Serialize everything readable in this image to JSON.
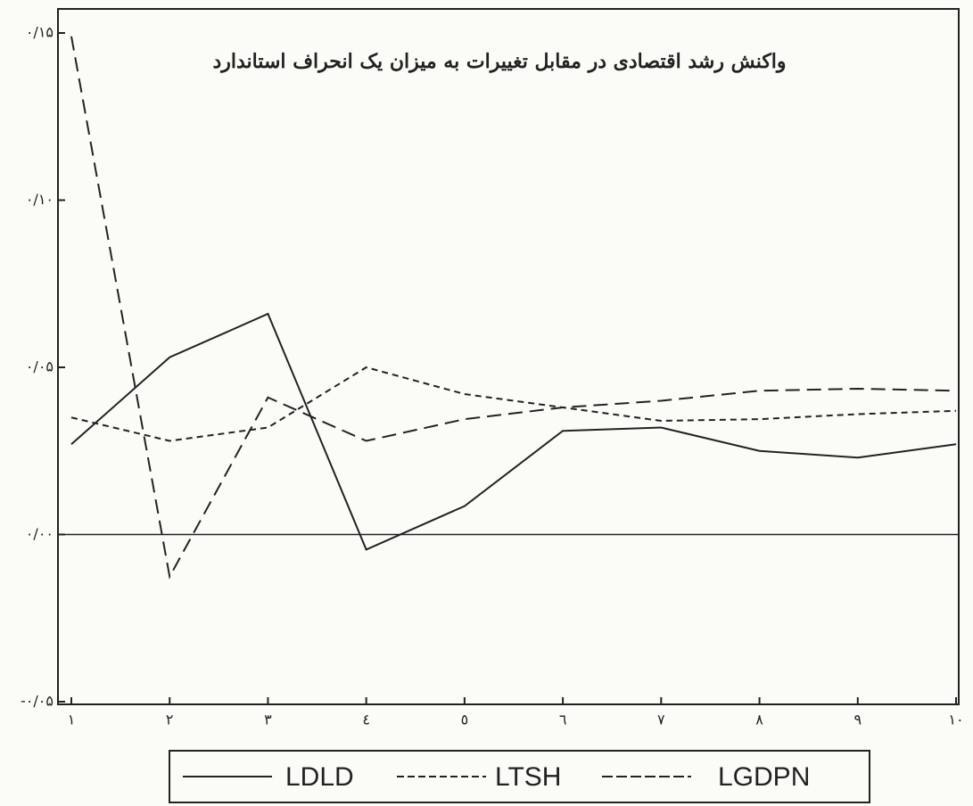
{
  "chart_data": {
    "type": "line",
    "title": "واکنش رشد اقتصادی در مقابل تغییرات به میزان یک انحراف استاندارد",
    "categories": [
      "۱",
      "۲",
      "۳",
      "٤",
      "٥",
      "٦",
      "۷",
      "۸",
      "۹",
      "۱۰"
    ],
    "series": [
      {
        "name": "LDLD",
        "color": "#222222",
        "dash": "none",
        "values": [
          0.027,
          0.053,
          0.066,
          -0.0045,
          0.0085,
          0.031,
          0.032,
          0.025,
          0.023,
          0.027
        ]
      },
      {
        "name": "LTSH",
        "color": "#222222",
        "dash": "7 5",
        "values": [
          0.035,
          0.028,
          0.032,
          0.05,
          0.042,
          0.038,
          0.034,
          0.0345,
          0.036,
          0.037
        ]
      },
      {
        "name": "LGDPN",
        "color": "#222222",
        "dash": "16 8",
        "values": [
          0.149,
          -0.0126,
          0.041,
          0.028,
          0.0345,
          0.038,
          0.04,
          0.043,
          0.0436,
          0.043
        ]
      }
    ],
    "ylim": [
      -0.05,
      0.15
    ],
    "yticks": [
      {
        "value": -0.05,
        "label": "-۰/۰۵"
      },
      {
        "value": 0,
        "label": "۰/۰۰"
      },
      {
        "value": 0.05,
        "label": "۰/۰۵"
      },
      {
        "value": 0.1,
        "label": "۰/۱۰"
      },
      {
        "value": 0.15,
        "label": "۰/۱۵"
      }
    ],
    "zero_line": true
  }
}
